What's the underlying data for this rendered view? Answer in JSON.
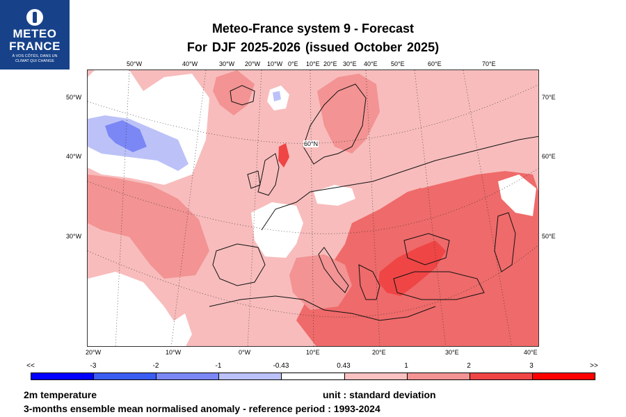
{
  "logo": {
    "line1": "METEO",
    "line2": "FRANCE",
    "tagline_1": "À VOS CÔTÉS, DANS UN",
    "tagline_2": "CLIMAT QUI CHANGE",
    "bg_color": "#17428a"
  },
  "header": {
    "title": "Meteo-France system 9  -  Forecast",
    "subtitle": "For DJF 2025-2026      (issued October 2025)"
  },
  "map": {
    "projection": "polar-stereographic Europe",
    "top_lon_labels": [
      "50°W",
      "40°W",
      "30°W",
      "20°W",
      "10°W",
      "0°E",
      "10°E",
      "20°E",
      "30°E",
      "40°E",
      "50°E",
      "60°E",
      "70°E"
    ],
    "bottom_lon_labels": [
      "20°W",
      "10°W",
      "0°W",
      "10°E",
      "20°E",
      "30°E",
      "40°E"
    ],
    "left_lat_labels": [
      "50°W",
      "40°W",
      "30°W"
    ],
    "right_lat_labels": [
      "70°E",
      "60°E",
      "50°E"
    ],
    "inner_label": "60°N",
    "dominant_signal": "positive anomaly over most of Europe and Mediterranean; negative anomaly near Labrador/Greenland sea"
  },
  "legend": {
    "labels": [
      "<<",
      "-3",
      "-2",
      "-1",
      "-0.43",
      "0.43",
      "1",
      "2",
      "3",
      ">>"
    ],
    "colors": [
      "#0000ff",
      "#3b5cf0",
      "#7b87f5",
      "#bcc2f8",
      "#ffffff",
      "#f9c1c1",
      "#f39393",
      "#ef6a6a",
      "#ef4545",
      "#ff0000"
    ]
  },
  "footer": {
    "variable": "2m temperature",
    "unit": "unit : standard deviation",
    "description": "3-months ensemble mean normalised anomaly - reference period : 1993-2024"
  }
}
